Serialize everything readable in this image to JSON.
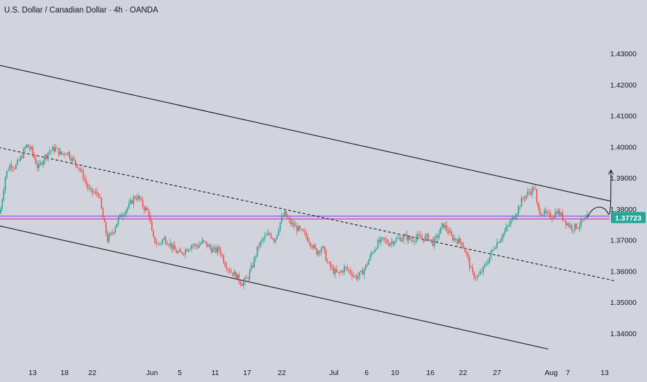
{
  "title": "U.S. Dollar / Canadian Dollar · 4h · OANDA",
  "colors": {
    "background": "#d1d4dc",
    "up": "#26a69a",
    "down": "#ef5350",
    "channel_line": "#131722",
    "support_line_purple": "#7b61ff",
    "support_line_pink": "#e040a0",
    "price_tag_bg": "#26a69a"
  },
  "chart_data": {
    "type": "candlestick",
    "symbol": "USDCAD",
    "timeframe": "4h",
    "source": "OANDA",
    "ylim": [
      1.3366,
      1.4372
    ],
    "y_ticks": [
      "1.43000",
      "1.42000",
      "1.41000",
      "1.40000",
      "1.39000",
      "1.38000",
      "1.37000",
      "1.36000",
      "1.35000",
      "1.34000"
    ],
    "x_ticks": [
      "13",
      "18",
      "22",
      "Jun",
      "5",
      "11",
      "17",
      "22",
      "Jul",
      "6",
      "10",
      "16",
      "22",
      "27",
      "Aug",
      "7",
      "13"
    ],
    "last_price": "1.37723",
    "horizontal_levels": [
      1.3777,
      1.3768
    ],
    "price_path": [
      [
        0,
        1.3785
      ],
      [
        8,
        1.391
      ],
      [
        15,
        1.3945
      ],
      [
        22,
        1.3935
      ],
      [
        30,
        1.3965
      ],
      [
        38,
        1.4005
      ],
      [
        45,
        1.399
      ],
      [
        55,
        1.393
      ],
      [
        62,
        1.396
      ],
      [
        70,
        1.3985
      ],
      [
        80,
        1.3995
      ],
      [
        88,
        1.3975
      ],
      [
        96,
        1.3985
      ],
      [
        104,
        1.396
      ],
      [
        112,
        1.394
      ],
      [
        120,
        1.3905
      ],
      [
        128,
        1.386
      ],
      [
        136,
        1.385
      ],
      [
        142,
        1.385
      ],
      [
        148,
        1.3775
      ],
      [
        155,
        1.37
      ],
      [
        162,
        1.3725
      ],
      [
        170,
        1.3765
      ],
      [
        178,
        1.379
      ],
      [
        186,
        1.381
      ],
      [
        194,
        1.384
      ],
      [
        200,
        1.3835
      ],
      [
        207,
        1.3805
      ],
      [
        214,
        1.379
      ],
      [
        220,
        1.3705
      ],
      [
        228,
        1.3685
      ],
      [
        236,
        1.3705
      ],
      [
        244,
        1.369
      ],
      [
        252,
        1.3665
      ],
      [
        260,
        1.3655
      ],
      [
        268,
        1.367
      ],
      [
        276,
        1.3685
      ],
      [
        284,
        1.368
      ],
      [
        292,
        1.3695
      ],
      [
        300,
        1.368
      ],
      [
        308,
        1.3665
      ],
      [
        316,
        1.367
      ],
      [
        324,
        1.3625
      ],
      [
        332,
        1.36
      ],
      [
        340,
        1.3585
      ],
      [
        348,
        1.356
      ],
      [
        356,
        1.3575
      ],
      [
        364,
        1.362
      ],
      [
        372,
        1.368
      ],
      [
        380,
        1.3705
      ],
      [
        388,
        1.372
      ],
      [
        396,
        1.37
      ],
      [
        404,
        1.376
      ],
      [
        410,
        1.3785
      ],
      [
        416,
        1.376
      ],
      [
        424,
        1.3745
      ],
      [
        432,
        1.373
      ],
      [
        440,
        1.3715
      ],
      [
        448,
        1.369
      ],
      [
        456,
        1.366
      ],
      [
        464,
        1.368
      ],
      [
        472,
        1.3625
      ],
      [
        480,
        1.36
      ],
      [
        488,
        1.359
      ],
      [
        496,
        1.361
      ],
      [
        504,
        1.36
      ],
      [
        512,
        1.358
      ],
      [
        520,
        1.359
      ],
      [
        528,
        1.362
      ],
      [
        536,
        1.366
      ],
      [
        544,
        1.369
      ],
      [
        552,
        1.37
      ],
      [
        560,
        1.369
      ],
      [
        568,
        1.37
      ],
      [
        576,
        1.3705
      ],
      [
        584,
        1.371
      ],
      [
        592,
        1.37
      ],
      [
        600,
        1.371
      ],
      [
        608,
        1.3705
      ],
      [
        616,
        1.371
      ],
      [
        624,
        1.369
      ],
      [
        632,
        1.372
      ],
      [
        638,
        1.375
      ],
      [
        644,
        1.3735
      ],
      [
        650,
        1.371
      ],
      [
        658,
        1.37
      ],
      [
        666,
        1.369
      ],
      [
        674,
        1.364
      ],
      [
        680,
        1.359
      ],
      [
        688,
        1.358
      ],
      [
        696,
        1.3605
      ],
      [
        704,
        1.364
      ],
      [
        712,
        1.368
      ],
      [
        720,
        1.3705
      ],
      [
        728,
        1.373
      ],
      [
        736,
        1.376
      ],
      [
        744,
        1.379
      ],
      [
        752,
        1.383
      ],
      [
        760,
        1.385
      ],
      [
        766,
        1.386
      ],
      [
        770,
        1.3875
      ],
      [
        774,
        1.38
      ],
      [
        780,
        1.379
      ],
      [
        788,
        1.378
      ],
      [
        796,
        1.3775
      ],
      [
        802,
        1.3795
      ],
      [
        808,
        1.378
      ],
      [
        816,
        1.3755
      ],
      [
        824,
        1.374
      ],
      [
        832,
        1.3745
      ],
      [
        840,
        1.376
      ],
      [
        846,
        1.3772
      ]
    ],
    "channel_upper": [
      [
        -2,
        1.4263
      ],
      [
        880,
        1.3825
      ]
    ],
    "channel_lower": [
      [
        -2,
        1.3746
      ],
      [
        790,
        1.3349
      ]
    ],
    "channel_mid_dashed": [
      [
        -2,
        1.3998
      ],
      [
        885,
        1.3569
      ]
    ],
    "projection_path": "up"
  }
}
